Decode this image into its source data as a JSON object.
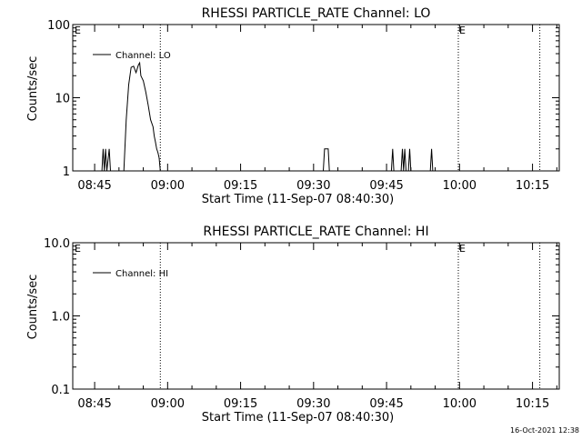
{
  "chart_data": [
    {
      "type": "line",
      "title": "RHESSI PARTICLE_RATE Channel: LO",
      "xlabel": "Start Time (11-Sep-07 08:40:30)",
      "ylabel": "Counts/sec",
      "yscale": "log",
      "ylim": [
        1,
        100
      ],
      "yticks": [
        "1",
        "10",
        "100"
      ],
      "xticks": [
        "08:45",
        "09:00",
        "09:15",
        "09:30",
        "09:45",
        "10:00",
        "10:15"
      ],
      "xlim_minutes_after_start": [
        0,
        100
      ],
      "vlines": [
        {
          "x": "08:58:30",
          "flag": ""
        },
        {
          "x": "09:59:45",
          "flag": "E"
        },
        {
          "x": "10:16:30",
          "flag": ""
        }
      ],
      "left_flag": "E",
      "grid": false,
      "legend": {
        "placement": "top-left",
        "entries": [
          "Channel: LO"
        ]
      },
      "series": [
        {
          "name": "Channel: LO",
          "points": [
            [
              "08:46:30",
              1
            ],
            [
              "08:46:45",
              2
            ],
            [
              "08:47:00",
              1
            ],
            [
              "08:47:15",
              2
            ],
            [
              "08:47:30",
              1
            ],
            [
              "08:48:00",
              2
            ],
            [
              "08:48:15",
              1
            ],
            [
              "08:51:00",
              1
            ],
            [
              "08:51:30",
              5
            ],
            [
              "08:52:00",
              15
            ],
            [
              "08:52:30",
              26
            ],
            [
              "08:53:00",
              27
            ],
            [
              "08:53:30",
              22
            ],
            [
              "08:54:00",
              28
            ],
            [
              "08:54:15",
              30
            ],
            [
              "08:54:30",
              20
            ],
            [
              "08:55:00",
              17
            ],
            [
              "08:55:30",
              12
            ],
            [
              "08:56:00",
              8
            ],
            [
              "08:56:30",
              5
            ],
            [
              "08:57:00",
              4
            ],
            [
              "08:57:15",
              3
            ],
            [
              "08:57:30",
              2.5
            ],
            [
              "08:57:45",
              2
            ],
            [
              "08:58:00",
              1.8
            ],
            [
              "08:58:15",
              1.5
            ],
            [
              "08:58:30",
              1
            ],
            [
              "09:32:00",
              1
            ],
            [
              "09:32:15",
              2
            ],
            [
              "09:33:00",
              2
            ],
            [
              "09:33:15",
              1
            ],
            [
              "09:46:00",
              1
            ],
            [
              "09:46:15",
              2
            ],
            [
              "09:46:30",
              1
            ],
            [
              "09:48:00",
              1
            ],
            [
              "09:48:15",
              2
            ],
            [
              "09:48:30",
              1
            ],
            [
              "09:48:45",
              2
            ],
            [
              "09:49:00",
              1
            ],
            [
              "09:49:30",
              1
            ],
            [
              "09:49:45",
              2
            ],
            [
              "09:50:00",
              1
            ],
            [
              "09:54:00",
              1
            ],
            [
              "09:54:15",
              2
            ],
            [
              "09:54:30",
              1
            ]
          ]
        }
      ]
    },
    {
      "type": "line",
      "title": "RHESSI PARTICLE_RATE Channel: HI",
      "xlabel": "Start Time (11-Sep-07 08:40:30)",
      "ylabel": "Counts/sec",
      "yscale": "log",
      "ylim": [
        0.1,
        10
      ],
      "yticks": [
        "0.1",
        "1.0",
        "10.0"
      ],
      "xticks": [
        "08:45",
        "09:00",
        "09:15",
        "09:30",
        "09:45",
        "10:00",
        "10:15"
      ],
      "xlim_minutes_after_start": [
        0,
        100
      ],
      "vlines": [
        {
          "x": "08:58:30",
          "flag": ""
        },
        {
          "x": "09:59:45",
          "flag": "E"
        },
        {
          "x": "10:16:30",
          "flag": ""
        }
      ],
      "left_flag": "E",
      "grid": false,
      "legend": {
        "placement": "top-left",
        "entries": [
          "Channel: HI"
        ]
      },
      "series": [
        {
          "name": "Channel: HI",
          "points": []
        }
      ]
    }
  ],
  "footer": {
    "timestamp": "16-Oct-2021 12:38"
  }
}
